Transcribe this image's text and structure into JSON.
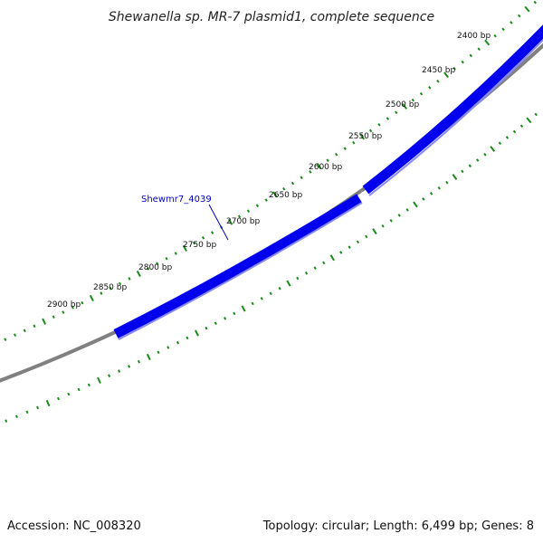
{
  "title": "Shewanella sp. MR-7 plasmid1, complete sequence",
  "accession": "Accession: NC_008320",
  "summary": "Topology: circular; Length: 6,499 bp; Genes: 8",
  "ruler": {
    "color": "#1a8a1a",
    "labels": [
      "2400 bp",
      "2450 bp",
      "2500 bp",
      "2550 bp",
      "2600 bp",
      "2650 bp",
      "2700 bp",
      "2750 bp",
      "2800 bp",
      "2850 bp",
      "2900 bp"
    ]
  },
  "genes": [
    {
      "label": "Shewmr7_4039",
      "color": "#0000ee",
      "labeled": true
    },
    {
      "label": "",
      "color": "#0000ee",
      "labeled": false
    }
  ],
  "backbone_color": "#808080"
}
